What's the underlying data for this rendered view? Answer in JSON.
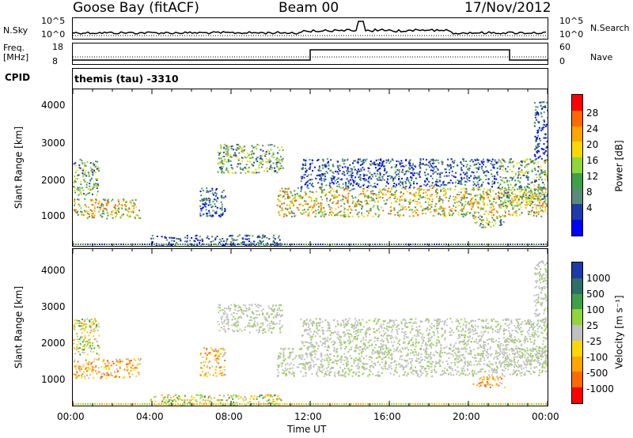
{
  "header": {
    "station": "Goose Bay (fitACF)",
    "beam": "Beam 00",
    "date": "17/Nov/2012"
  },
  "noise_panel": {
    "left_label": "N.Sky",
    "right_label": "N.Search",
    "left_ticks": [
      "10^5",
      "10^0"
    ],
    "right_ticks": [
      "10^5",
      "10^0"
    ]
  },
  "freq_panel": {
    "left_label": "Freq.",
    "left_unit": "[MHz]",
    "right_label": "Nave",
    "left_ticks": [
      "18",
      "8"
    ],
    "right_ticks": [
      "60",
      "0"
    ]
  },
  "cpid": {
    "label": "CPID",
    "value": "themis (tau) -3310"
  },
  "chart_data": [
    {
      "type": "heatmap",
      "quantity": "Power",
      "ylabel": "Slant Range [km]",
      "ylim": [
        180,
        4500
      ],
      "yticks": [
        "4000",
        "3000",
        "2000",
        "1000"
      ],
      "xlim_hours": [
        0,
        24
      ],
      "colorbar": {
        "label": "Power [dB]",
        "ticks": [
          "28",
          "24",
          "20",
          "16",
          "12",
          "8",
          "4"
        ],
        "colors": [
          "#ff0000",
          "#ff6a00",
          "#ffa500",
          "#ffd700",
          "#8fd63a",
          "#3fa04a",
          "#5a8a7a",
          "#1e3aa8",
          "#0000ff"
        ]
      },
      "echo_regions": [
        {
          "t0": 0.0,
          "t1": 3.4,
          "r0": 950,
          "r1": 1500,
          "level": "high"
        },
        {
          "t0": 0.0,
          "t1": 1.3,
          "r0": 1600,
          "r1": 2600,
          "level": "medium"
        },
        {
          "t0": 3.9,
          "t1": 10.5,
          "r0": 180,
          "r1": 500,
          "level": "low"
        },
        {
          "t0": 6.4,
          "t1": 7.7,
          "r0": 1000,
          "r1": 1800,
          "level": "low"
        },
        {
          "t0": 7.3,
          "t1": 10.6,
          "r0": 2200,
          "r1": 3000,
          "level": "medium"
        },
        {
          "t0": 10.3,
          "t1": 24.0,
          "r0": 1000,
          "r1": 1800,
          "level": "high"
        },
        {
          "t0": 11.5,
          "t1": 21.5,
          "r0": 1800,
          "r1": 2600,
          "level": "low"
        },
        {
          "t0": 20.2,
          "t1": 21.8,
          "r0": 700,
          "r1": 1000,
          "level": "medium"
        },
        {
          "t0": 21.5,
          "t1": 24.0,
          "r0": 1300,
          "r1": 2600,
          "level": "medium"
        },
        {
          "t0": 23.3,
          "t1": 24.0,
          "r0": 2600,
          "r1": 4200,
          "level": "low"
        }
      ]
    },
    {
      "type": "heatmap",
      "quantity": "Velocity",
      "ylabel": "Slant Range [km]",
      "ylim": [
        180,
        4500
      ],
      "yticks": [
        "4000",
        "3000",
        "2000",
        "1000"
      ],
      "xlim_hours": [
        0,
        24
      ],
      "xlabel": "Time UT",
      "xticks": [
        "00:00",
        "04:00",
        "08:00",
        "12:00",
        "16:00",
        "20:00",
        "00:00"
      ],
      "colorbar": {
        "label": "Velocity [m s⁻¹]",
        "ticks": [
          "1000",
          "500",
          "100",
          "25",
          "-25",
          "-100",
          "-500",
          "-1000"
        ],
        "colors": [
          "#1e3aa8",
          "#2f6f6a",
          "#3fa04a",
          "#8fd63a",
          "#c0c0c0",
          "#ffd700",
          "#ffa500",
          "#ff6a00",
          "#ff0000"
        ]
      },
      "echo_regions": [
        {
          "t0": 0.0,
          "t1": 3.4,
          "r0": 950,
          "r1": 1500,
          "level": "negative"
        },
        {
          "t0": 0.0,
          "t1": 1.3,
          "r0": 1600,
          "r1": 2600,
          "level": "mixed"
        },
        {
          "t0": 3.9,
          "t1": 10.5,
          "r0": 180,
          "r1": 500,
          "level": "mixed"
        },
        {
          "t0": 6.4,
          "t1": 7.7,
          "r0": 1000,
          "r1": 1800,
          "level": "negative"
        },
        {
          "t0": 7.3,
          "t1": 10.6,
          "r0": 2200,
          "r1": 3000,
          "level": "ground"
        },
        {
          "t0": 10.3,
          "t1": 24.0,
          "r0": 1000,
          "r1": 1800,
          "level": "ground"
        },
        {
          "t0": 11.5,
          "t1": 21.5,
          "r0": 1800,
          "r1": 2600,
          "level": "ground"
        },
        {
          "t0": 20.2,
          "t1": 21.8,
          "r0": 700,
          "r1": 1000,
          "level": "negative"
        },
        {
          "t0": 21.5,
          "t1": 24.0,
          "r0": 1300,
          "r1": 2600,
          "level": "ground"
        },
        {
          "t0": 23.3,
          "t1": 24.0,
          "r0": 2600,
          "r1": 4200,
          "level": "ground"
        }
      ]
    }
  ]
}
